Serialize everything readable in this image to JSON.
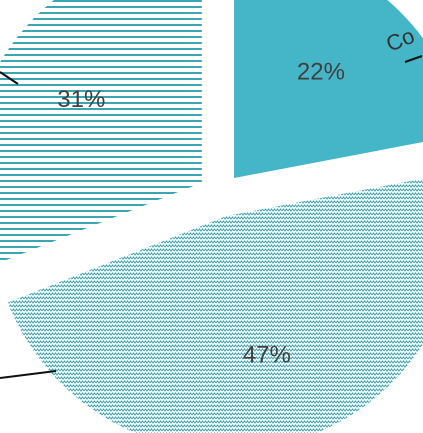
{
  "chart_data": {
    "type": "pie",
    "exploded": true,
    "slices": [
      {
        "value": 22,
        "label": "22%",
        "category": "Co",
        "color": "#45B5C8",
        "pattern": "solid"
      },
      {
        "value": 47,
        "label": "47%",
        "category": "",
        "color": "#3AA6B2",
        "pattern": "zigzag"
      },
      {
        "value": 31,
        "label": "31%",
        "category": "",
        "color": "#3AA6B2",
        "pattern": "horizontal-lines"
      }
    ]
  }
}
